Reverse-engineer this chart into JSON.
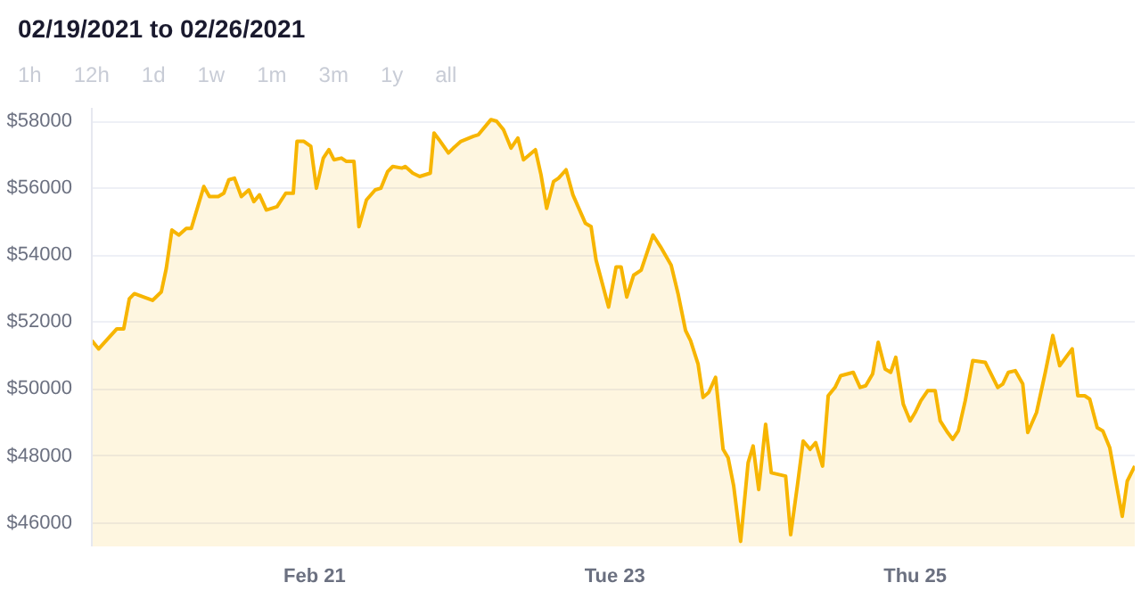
{
  "chart_data": {
    "type": "area",
    "title": "02/19/2021 to 02/26/2021",
    "annotations": [
      "1h",
      "12h",
      "1d",
      "1w",
      "1m",
      "3m",
      "1y",
      "all"
    ],
    "x": [
      "2021-02-19T12:24",
      "2021-02-19T13:30",
      "2021-02-19T16:24",
      "2021-02-19T17:30",
      "2021-02-19T18:24",
      "2021-02-19T19:12",
      "2021-02-19T22:06",
      "2021-02-19T23:30",
      "2021-02-20T00:18",
      "2021-02-20T01:12",
      "2021-02-20T02:18",
      "2021-02-20T03:30",
      "2021-02-20T04:18",
      "2021-02-20T06:18",
      "2021-02-20T07:12",
      "2021-02-20T08:36",
      "2021-02-20T09:30",
      "2021-02-20T10:18",
      "2021-02-20T11:12",
      "2021-02-20T12:18",
      "2021-02-20T13:30",
      "2021-02-20T14:18",
      "2021-02-20T15:12",
      "2021-02-20T16:18",
      "2021-02-20T18:00",
      "2021-02-20T19:24",
      "2021-02-20T20:36",
      "2021-02-20T21:12",
      "2021-02-20T22:18",
      "2021-02-20T23:24",
      "2021-02-21T00:18",
      "2021-02-21T01:24",
      "2021-02-21T02:18",
      "2021-02-21T03:06",
      "2021-02-21T04:18",
      "2021-02-21T05:06",
      "2021-02-21T06:18",
      "2021-02-21T07:06",
      "2021-02-21T08:18",
      "2021-02-21T09:42",
      "2021-02-21T10:36",
      "2021-02-21T11:42",
      "2021-02-21T12:30",
      "2021-02-21T14:00",
      "2021-02-21T14:30",
      "2021-02-21T15:42",
      "2021-02-21T16:48",
      "2021-02-21T18:30",
      "2021-02-21T19:06",
      "2021-02-21T19:54",
      "2021-02-21T21:24",
      "2021-02-21T22:12",
      "2021-02-21T23:24",
      "2021-02-22T01:24",
      "2021-02-22T02:12",
      "2021-02-22T04:12",
      "2021-02-22T05:06",
      "2021-02-22T06:12",
      "2021-02-22T07:24",
      "2021-02-22T08:30",
      "2021-02-22T09:24",
      "2021-02-22T11:18",
      "2021-02-22T12:12",
      "2021-02-22T13:06",
      "2021-02-22T14:12",
      "2021-02-22T15:00",
      "2021-02-22T16:12",
      "2021-02-22T17:18",
      "2021-02-22T19:18",
      "2021-02-22T20:12",
      "2021-02-22T21:00",
      "2021-02-22T23:00",
      "2021-02-23T00:12",
      "2021-02-23T01:00",
      "2021-02-23T01:54",
      "2021-02-23T03:00",
      "2021-02-23T04:12",
      "2021-02-23T06:06",
      "2021-02-23T07:18",
      "2021-02-23T09:00",
      "2021-02-23T10:06",
      "2021-02-23T11:18",
      "2021-02-23T12:06",
      "2021-02-23T13:18",
      "2021-02-23T14:06",
      "2021-02-23T15:00",
      "2021-02-23T16:06",
      "2021-02-23T17:18",
      "2021-02-23T18:06",
      "2021-02-23T19:00",
      "2021-02-23T20:06",
      "2021-02-23T21:18",
      "2021-02-23T22:06",
      "2021-02-23T23:00",
      "2021-02-24T00:06",
      "2021-02-24T01:00",
      "2021-02-24T03:18",
      "2021-02-24T04:06",
      "2021-02-24T05:12",
      "2021-02-24T06:06",
      "2021-02-24T07:12",
      "2021-02-24T08:06",
      "2021-02-24T09:12",
      "2021-02-24T10:06",
      "2021-02-24T11:12",
      "2021-02-24T12:06",
      "2021-02-24T14:06",
      "2021-02-24T15:12",
      "2021-02-24T16:06",
      "2021-02-24T17:12",
      "2021-02-24T18:06",
      "2021-02-24T19:12",
      "2021-02-24T20:06",
      "2021-02-24T20:54",
      "2021-02-24T22:06",
      "2021-02-24T23:12",
      "2021-02-25T00:00",
      "2021-02-25T00:54",
      "2021-02-25T02:00",
      "2021-02-25T03:12",
      "2021-02-25T04:00",
      "2021-02-25T05:12",
      "2021-02-25T06:00",
      "2021-02-25T06:54",
      "2021-02-25T08:00",
      "2021-02-25T09:12",
      "2021-02-25T11:12",
      "2021-02-25T13:12",
      "2021-02-25T14:00",
      "2021-02-25T14:54",
      "2021-02-25T16:00",
      "2021-02-25T17:12",
      "2021-02-25T18:00",
      "2021-02-25T19:24",
      "2021-02-25T20:48",
      "2021-02-25T22:00",
      "2021-02-25T23:06",
      "2021-02-26T01:06",
      "2021-02-26T02:00",
      "2021-02-26T03:06",
      "2021-02-26T03:54",
      "2021-02-26T05:06",
      "2021-02-26T06:00",
      "2021-02-26T07:06",
      "2021-02-26T09:06",
      "2021-02-26T09:54",
      "2021-02-26T11:06"
    ],
    "series": [
      {
        "color": "#f7b500",
        "values": [
          51450,
          51200,
          51800,
          51800,
          52700,
          52850,
          52650,
          52900,
          53600,
          54750,
          54600,
          54800,
          54800,
          56050,
          55750,
          55750,
          55850,
          56250,
          56300,
          55750,
          55950,
          55600,
          55800,
          55350,
          55450,
          55850,
          55850,
          57400,
          57400,
          57250,
          56000,
          56900,
          57150,
          56850,
          56900,
          56800,
          56800,
          54850,
          55650,
          55950,
          56000,
          56500,
          56650,
          56600,
          56650,
          56450,
          56350,
          56450,
          57650,
          57450,
          57050,
          57200,
          57400,
          57550,
          57600,
          58050,
          58000,
          57750,
          57200,
          57500,
          56850,
          57150,
          56400,
          55400,
          56200,
          56300,
          56550,
          55800,
          54950,
          54850,
          53850,
          52450,
          53650,
          53650,
          52750,
          53400,
          53550,
          54600,
          54250,
          53700,
          52850,
          51750,
          51450,
          50750,
          49750,
          49900,
          50350,
          48200,
          47950,
          47100,
          45450,
          47800,
          48300,
          47000,
          48950,
          47500,
          47400,
          45650,
          47150,
          48450,
          48200,
          48400,
          47700,
          49800,
          50050,
          50400,
          50500,
          50050,
          50100,
          50450,
          51400,
          50600,
          50500,
          50950,
          49550,
          49050,
          49300,
          49650,
          49950,
          49950,
          49050,
          48700,
          48500,
          48750,
          49650,
          50850,
          50800,
          50050,
          50150,
          50500,
          50550,
          50150,
          48700,
          49300,
          50500,
          51600,
          50700,
          51200,
          49800,
          49800,
          49700,
          48850,
          48750,
          48250,
          46200,
          47250,
          47700
        ]
      }
    ],
    "ylim": [
      45300,
      58400
    ],
    "xlim": [
      "2021-02-19T12:24",
      "2021-02-26T11:06"
    ],
    "xticks": [
      {
        "value": "2021-02-21",
        "label": "Feb 21"
      },
      {
        "value": "2021-02-23",
        "label": "Tue 23"
      },
      {
        "value": "2021-02-25",
        "label": "Thu 25"
      }
    ],
    "yticks": [
      {
        "value": 46000,
        "label": "$46000"
      },
      {
        "value": 48000,
        "label": "$48000"
      },
      {
        "value": 50000,
        "label": "$50000"
      },
      {
        "value": 52000,
        "label": "$52000"
      },
      {
        "value": 54000,
        "label": "$54000"
      },
      {
        "value": 56000,
        "label": "$56000"
      },
      {
        "value": 58000,
        "label": "$58000"
      }
    ],
    "grid": "y"
  }
}
